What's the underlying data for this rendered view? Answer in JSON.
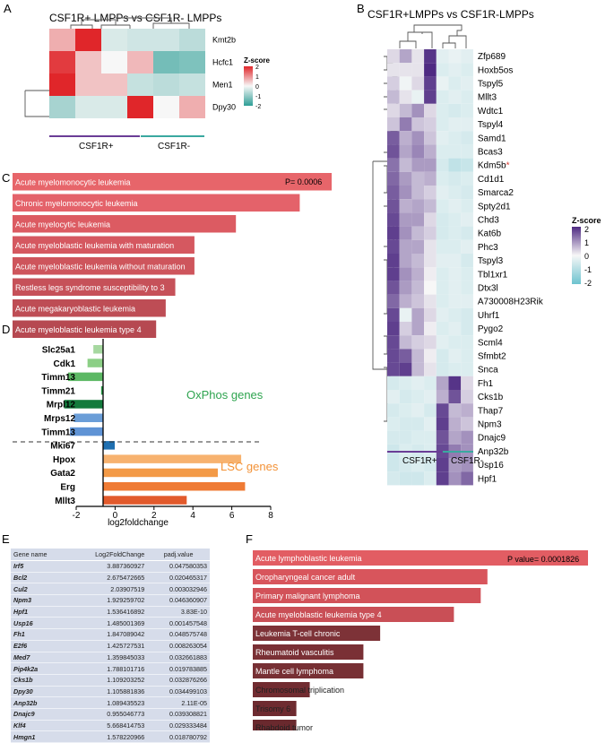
{
  "colors": {
    "red": "#e05c62",
    "darkred": "#7a2e33",
    "purple": "#6a3d96",
    "teal": "#3aa8a0",
    "oxgreen": "#2ea44f",
    "lscorange": "#f39237"
  },
  "panels": {
    "a": "A",
    "b": "B",
    "c": "C",
    "d": "D",
    "e": "E",
    "f": "F"
  },
  "chart_data": [
    {
      "panel": "A",
      "type": "heatmap",
      "title": "CSF1R+ LMPPs vs CSF1R- LMPPs",
      "rows": [
        "Kmt2b",
        "Hcfc1",
        "Men1",
        "Dpy30"
      ],
      "groups": [
        "CSF1R+",
        "CSF1R-"
      ],
      "values": [
        [
          0.7,
          2.0,
          -0.3,
          -0.4,
          -0.4,
          -0.6
        ],
        [
          1.8,
          0.5,
          0.0,
          0.6,
          -1.3,
          -1.2
        ],
        [
          2.0,
          0.5,
          0.5,
          -0.5,
          -0.6,
          -0.5
        ],
        [
          -0.8,
          -0.3,
          -0.3,
          2.0,
          0.0,
          0.7
        ]
      ],
      "legend": {
        "title": "Z-score",
        "ticks": [
          "2",
          "1",
          "0",
          "-1",
          "-2"
        ]
      }
    },
    {
      "panel": "B",
      "type": "heatmap",
      "title": "CSF1R+LMPPs vs CSF1R-LMPPs",
      "rows": [
        "Zfp689",
        "Hoxb5os",
        "Tspyl5",
        "Mllt3",
        "Wdtc1",
        "Tspyl4",
        "Samd1",
        "Bcas3",
        "Kdm5b",
        "Cd1d1",
        "Smarca2",
        "Spty2d1",
        "Chd3",
        "Kat6b",
        "Phc3",
        "Tspyl3",
        "Tbl1xr1",
        "Dtx3l",
        "A730008H23Rik",
        "Uhrf1",
        "Pygo2",
        "Scml4",
        "Sfmbt2",
        "Snca",
        "Fh1",
        "Cks1b",
        "Thap7",
        "Npm3",
        "Dnajc9",
        "Anp32b",
        "Usp16",
        "Hpf1"
      ],
      "marked_row": "Kdm5b",
      "marker": "*",
      "groups": [
        "CSF1R+",
        "CSF1R-"
      ],
      "values": [
        [
          0.3,
          0.8,
          0.2,
          1.9,
          -0.3,
          -0.2,
          -0.3
        ],
        [
          0.2,
          0.2,
          0.2,
          2.0,
          -0.4,
          -0.3,
          -0.4
        ],
        [
          0.4,
          -0.1,
          0.3,
          1.8,
          -0.2,
          -0.4,
          -0.3
        ],
        [
          0.6,
          0.2,
          -0.2,
          1.8,
          -0.4,
          -0.3,
          -0.4
        ],
        [
          0.3,
          0.6,
          1.0,
          0.3,
          -0.4,
          -0.5,
          -0.4
        ],
        [
          0.5,
          1.2,
          0.5,
          0.4,
          -0.4,
          -0.3,
          -0.3
        ],
        [
          1.5,
          0.7,
          1.0,
          0.5,
          -0.3,
          -0.4,
          -0.5
        ],
        [
          1.6,
          0.8,
          1.1,
          0.7,
          -0.4,
          -0.4,
          -0.4
        ],
        [
          1.3,
          0.6,
          0.9,
          0.9,
          -0.5,
          -0.8,
          -0.7
        ],
        [
          1.4,
          0.9,
          0.6,
          0.7,
          -0.4,
          -0.5,
          -0.4
        ],
        [
          1.5,
          1.0,
          0.6,
          0.4,
          -0.3,
          -0.4,
          -0.5
        ],
        [
          1.6,
          0.7,
          0.8,
          0.6,
          -0.4,
          -0.3,
          -0.4
        ],
        [
          1.7,
          0.9,
          0.9,
          0.3,
          -0.5,
          -0.4,
          -0.3
        ],
        [
          1.8,
          1.0,
          0.6,
          0.4,
          -0.5,
          -0.4,
          -0.5
        ],
        [
          1.7,
          0.8,
          0.8,
          0.2,
          -0.4,
          -0.4,
          -0.3
        ],
        [
          1.8,
          0.8,
          0.6,
          0.2,
          -0.3,
          -0.3,
          -0.5
        ],
        [
          1.8,
          1.0,
          0.7,
          0.1,
          -0.4,
          -0.3,
          -0.4
        ],
        [
          1.6,
          0.9,
          0.6,
          0.0,
          -0.4,
          -0.3,
          -0.4
        ],
        [
          1.4,
          0.7,
          0.5,
          0.2,
          -0.4,
          -0.3,
          -0.3
        ],
        [
          1.7,
          -0.2,
          0.8,
          0.3,
          -0.3,
          -0.4,
          -0.5
        ],
        [
          1.8,
          0.4,
          0.8,
          0.1,
          -0.4,
          -0.3,
          -0.5
        ],
        [
          1.7,
          0.6,
          0.4,
          0.3,
          -0.3,
          -0.4,
          -0.4
        ],
        [
          1.7,
          1.5,
          0.6,
          0.1,
          -0.5,
          -0.3,
          -0.4
        ],
        [
          1.7,
          1.8,
          0.6,
          0.2,
          -0.5,
          -0.4,
          -0.4
        ],
        [
          -0.5,
          -0.4,
          -0.3,
          -0.4,
          0.8,
          1.9,
          0.3
        ],
        [
          -0.3,
          -0.5,
          -0.4,
          -0.3,
          0.7,
          1.6,
          0.4
        ],
        [
          -0.5,
          -0.4,
          -0.3,
          -0.5,
          1.7,
          0.6,
          0.7
        ],
        [
          -0.4,
          -0.5,
          -0.5,
          -0.3,
          1.8,
          0.7,
          0.5
        ],
        [
          -0.5,
          -0.5,
          -0.4,
          -0.4,
          1.6,
          0.8,
          1.0
        ],
        [
          -0.6,
          -0.4,
          -0.5,
          -0.4,
          1.7,
          1.2,
          1.0
        ],
        [
          -0.6,
          -0.5,
          -0.4,
          -0.5,
          1.8,
          0.9,
          1.0
        ],
        [
          -0.5,
          -0.6,
          -0.6,
          -0.4,
          1.8,
          1.0,
          1.4
        ]
      ],
      "legend": {
        "title": "Z-score",
        "ticks": [
          "2",
          "1",
          "0",
          "-1",
          "-2"
        ]
      }
    },
    {
      "panel": "C",
      "type": "bar",
      "orientation": "horizontal",
      "categories": [
        "Acute myelomonocytic leukemia",
        "Chronic myelomonocytic leukemia",
        "Acute myelocytic leukemia",
        "Acute myeloblastic leukemia with maturation",
        "Acute myeloblastic leukemia without maturation",
        "Restless legs syndrome susceptibility to 3",
        "Acute megakaryoblastic leukemia",
        "Acute myeloblastic leukemia type 4"
      ],
      "values": [
        100,
        90,
        70,
        57,
        57,
        51,
        48,
        45
      ],
      "annotation": "P= 0.0006"
    },
    {
      "panel": "D",
      "type": "bar",
      "orientation": "horizontal",
      "categories": [
        "Slc25a1",
        "Cdk1",
        "Timm13",
        "Timm21",
        "Mrpl12",
        "Mrps12",
        "Timm13",
        "Mki67",
        "Hpox",
        "Gata2",
        "Erg",
        "Mllt3"
      ],
      "values": [
        -0.5,
        -0.8,
        -1.8,
        -0.1,
        -2.0,
        -1.5,
        -1.7,
        0.6,
        7.1,
        5.9,
        7.3,
        4.3
      ],
      "bar_colors": [
        "#a6d8a0",
        "#8ccf86",
        "#5cb864",
        "#2b9a48",
        "#137a3c",
        "#6b9ed8",
        "#5f93d5",
        "#1f6fb0",
        "#f7b26f",
        "#f39a47",
        "#ef7b35",
        "#e25a2c"
      ],
      "xlabel": "log2foldchange",
      "xlim": [
        -2,
        8
      ],
      "xticks": [
        "-2",
        "0",
        "2",
        "4",
        "6",
        "8"
      ],
      "groups": [
        {
          "label": "OxPhos genes",
          "color": "#2ea44f"
        },
        {
          "label": "LSC genes",
          "color": "#f39237"
        }
      ]
    },
    {
      "panel": "F",
      "type": "bar",
      "orientation": "horizontal",
      "categories": [
        "Acute lymphoblastic leukemia",
        "Oropharyngeal cancer adult",
        "Primary malignant lymphoma",
        "Acute myeloblastic leukemia type 4",
        "Leukemia T-cell chronic",
        "Rheumatoid vasculitis",
        "Mantle cell lymphoma",
        "Chromosomal triplication",
        "Trisomy 6",
        "Rhabdoid tumor"
      ],
      "values": [
        100,
        70,
        68,
        60,
        38,
        33,
        33,
        17,
        13,
        13
      ],
      "annotation": "P value= 0.0001826"
    }
  ],
  "table": {
    "headers": [
      "Gene name",
      "Log2FoldChange",
      "padj.value"
    ],
    "rows": [
      [
        "Irf5",
        "3.887360927",
        "0.047580353"
      ],
      [
        "Bcl2",
        "2.675472665",
        "0.020465317"
      ],
      [
        "Cul2",
        "2.03907519",
        "0.003032946"
      ],
      [
        "Npm3",
        "1.929259702",
        "0.046360907"
      ],
      [
        "Hpf1",
        "1.536416892",
        "3.83E-10"
      ],
      [
        "Usp16",
        "1.485001369",
        "0.001457548"
      ],
      [
        "Fh1",
        "1.847089042",
        "0.048575748"
      ],
      [
        "E2f6",
        "1.425727531",
        "0.008263054"
      ],
      [
        "Med7",
        "1.359845033",
        "0.032661883"
      ],
      [
        "Pip4k2a",
        "1.788101716",
        "0.019783885"
      ],
      [
        "Cks1b",
        "1.109203252",
        "0.032876266"
      ],
      [
        "Dpy30",
        "1.105881836",
        "0.034499103"
      ],
      [
        "Anp32b",
        "1.089435523",
        "2.11E-05"
      ],
      [
        "Dnajc9",
        "0.955046773",
        "0.039308821"
      ],
      [
        "Klf4",
        "5.668414753",
        "0.029333484"
      ],
      [
        "Hmgn1",
        "1.578220966",
        "0.018780792"
      ]
    ]
  }
}
